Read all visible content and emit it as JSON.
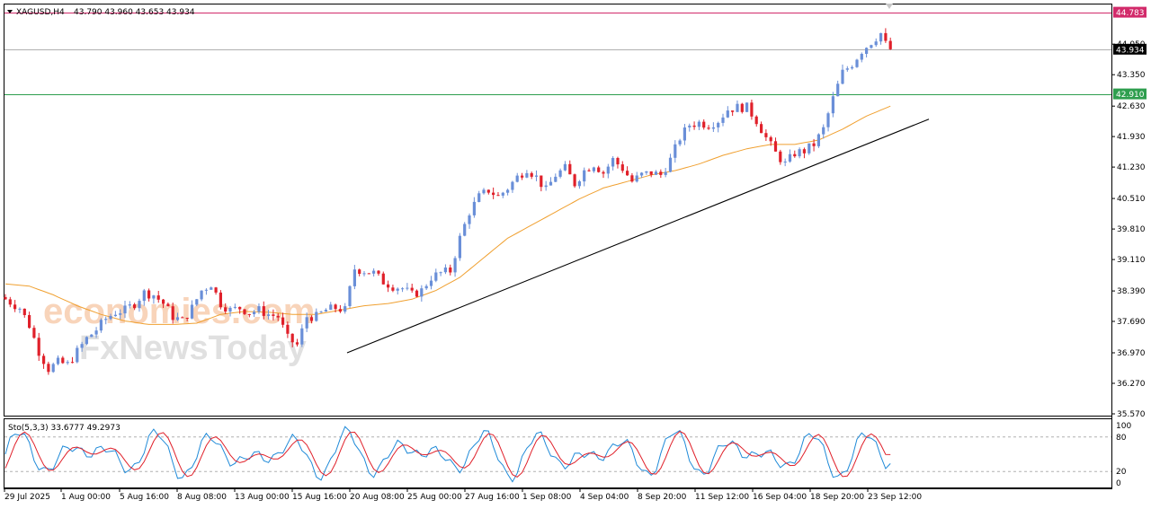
{
  "header": {
    "symbol_timeframe": "XAGUSD,H4",
    "ohlc": "43.790 43.960 43.653 43.934"
  },
  "watermark": {
    "brand1": "economies.com",
    "brand2": "FxNewsToday",
    "brand1_color": "#f4b183",
    "brand2_color": "#c8c8c8"
  },
  "colors": {
    "bull": "#6a8fd8",
    "bear": "#e0202a",
    "ma": "#f0a030",
    "trendline": "#000000",
    "level_red": "#d22a6a",
    "level_green": "#2e9e4e",
    "stoch_main": "#1f8ad8",
    "stoch_signal": "#e0202a"
  },
  "price_labels": {
    "high_level": "44.783",
    "current": "43.934",
    "support_level": "42.910"
  },
  "indicator": {
    "label": "Sto(5,3,3) 33.6777 49.2973",
    "scale_labels": [
      "100",
      "80",
      "20",
      "0"
    ]
  },
  "chart_data": [
    {
      "type": "candlestick",
      "symbol": "XAGUSD",
      "timeframe": "H4",
      "ylim": [
        35.57,
        44.96
      ],
      "y_ticks": [
        "44.050",
        "43.350",
        "42.630",
        "41.930",
        "41.230",
        "40.510",
        "39.810",
        "39.110",
        "38.390",
        "37.690",
        "36.970",
        "36.270",
        "35.570"
      ],
      "x_ticks": [
        "29 Jul 2025",
        "1 Aug 00:00",
        "5 Aug 16:00",
        "8 Aug 08:00",
        "13 Aug 00:00",
        "15 Aug 16:00",
        "20 Aug 08:00",
        "25 Aug 00:00",
        "27 Aug 16:00",
        "1 Sep 08:00",
        "4 Sep 04:00",
        "8 Sep 20:00",
        "11 Sep 12:00",
        "16 Sep 04:00",
        "18 Sep 20:00",
        "23 Sep 12:00"
      ],
      "horizontal_levels": [
        {
          "value": 44.783,
          "color": "#d22a6a"
        },
        {
          "value": 43.934,
          "color": "#b0b0b0"
        },
        {
          "value": 42.91,
          "color": "#2e9e4e"
        }
      ],
      "trendline": {
        "from": 36.97,
        "to": 42.33
      },
      "close_path": [
        [
          0,
          38.2
        ],
        [
          3,
          38.0
        ],
        [
          5,
          37.6
        ],
        [
          7,
          37.0
        ],
        [
          9,
          36.6
        ],
        [
          11,
          36.75
        ],
        [
          13,
          36.7
        ],
        [
          15,
          37.0
        ],
        [
          17,
          37.3
        ],
        [
          19,
          37.5
        ],
        [
          21,
          37.75
        ],
        [
          23,
          37.9
        ],
        [
          25,
          37.95
        ],
        [
          27,
          38.1
        ],
        [
          29,
          38.35
        ],
        [
          31,
          38.3
        ],
        [
          33,
          38.1
        ],
        [
          35,
          37.8
        ],
        [
          37,
          37.7
        ],
        [
          39,
          38.0
        ],
        [
          41,
          38.4
        ],
        [
          43,
          38.55
        ],
        [
          45,
          38.1
        ],
        [
          47,
          37.95
        ],
        [
          49,
          38.0
        ],
        [
          51,
          37.9
        ],
        [
          53,
          37.95
        ],
        [
          55,
          37.85
        ],
        [
          57,
          37.8
        ],
        [
          59,
          37.3
        ],
        [
          61,
          37.15
        ],
        [
          63,
          37.8
        ],
        [
          65,
          37.8
        ],
        [
          67,
          37.95
        ],
        [
          69,
          38.0
        ],
        [
          71,
          37.95
        ],
        [
          73,
          38.9
        ],
        [
          75,
          38.85
        ],
        [
          77,
          38.8
        ],
        [
          79,
          38.6
        ],
        [
          81,
          38.5
        ],
        [
          83,
          38.45
        ],
        [
          85,
          38.3
        ],
        [
          87,
          38.4
        ],
        [
          89,
          38.7
        ],
        [
          91,
          38.8
        ],
        [
          93,
          38.85
        ],
        [
          95,
          39.6
        ],
        [
          97,
          40.2
        ],
        [
          99,
          40.55
        ],
        [
          101,
          40.7
        ],
        [
          103,
          40.55
        ],
        [
          105,
          40.75
        ],
        [
          107,
          41.0
        ],
        [
          109,
          41.2
        ],
        [
          111,
          41.0
        ],
        [
          113,
          40.7
        ],
        [
          115,
          41.05
        ],
        [
          117,
          41.2
        ],
        [
          119,
          40.85
        ],
        [
          121,
          41.15
        ],
        [
          123,
          41.3
        ],
        [
          125,
          41.1
        ],
        [
          127,
          41.4
        ],
        [
          129,
          41.2
        ],
        [
          131,
          40.9
        ],
        [
          133,
          41.05
        ],
        [
          135,
          41.1
        ],
        [
          137,
          41.05
        ],
        [
          139,
          41.4
        ],
        [
          141,
          41.9
        ],
        [
          143,
          42.2
        ],
        [
          145,
          42.25
        ],
        [
          147,
          42.2
        ],
        [
          149,
          42.3
        ],
        [
          151,
          42.55
        ],
        [
          153,
          42.6
        ],
        [
          155,
          42.6
        ],
        [
          157,
          42.3
        ],
        [
          159,
          41.9
        ],
        [
          161,
          41.55
        ],
        [
          163,
          41.3
        ],
        [
          165,
          41.55
        ],
        [
          167,
          41.6
        ],
        [
          169,
          41.75
        ],
        [
          171,
          42.1
        ],
        [
          173,
          42.8
        ],
        [
          175,
          43.4
        ],
        [
          177,
          43.6
        ],
        [
          179,
          43.9
        ],
        [
          181,
          44.1
        ],
        [
          183,
          44.3
        ],
        [
          184,
          44.05
        ],
        [
          185,
          43.934
        ]
      ],
      "moving_average_path": [
        [
          0,
          38.55
        ],
        [
          5,
          38.5
        ],
        [
          10,
          38.3
        ],
        [
          15,
          38.05
        ],
        [
          20,
          37.85
        ],
        [
          25,
          37.7
        ],
        [
          30,
          37.62
        ],
        [
          35,
          37.62
        ],
        [
          40,
          37.65
        ],
        [
          45,
          37.85
        ],
        [
          50,
          37.92
        ],
        [
          55,
          37.9
        ],
        [
          60,
          37.85
        ],
        [
          65,
          37.85
        ],
        [
          70,
          37.95
        ],
        [
          75,
          38.05
        ],
        [
          80,
          38.1
        ],
        [
          85,
          38.2
        ],
        [
          90,
          38.4
        ],
        [
          95,
          38.7
        ],
        [
          100,
          39.15
        ],
        [
          105,
          39.6
        ],
        [
          110,
          39.9
        ],
        [
          115,
          40.2
        ],
        [
          120,
          40.5
        ],
        [
          125,
          40.75
        ],
        [
          130,
          40.9
        ],
        [
          135,
          41.05
        ],
        [
          140,
          41.15
        ],
        [
          145,
          41.3
        ],
        [
          150,
          41.5
        ],
        [
          155,
          41.65
        ],
        [
          160,
          41.75
        ],
        [
          165,
          41.75
        ],
        [
          170,
          41.85
        ],
        [
          175,
          42.1
        ],
        [
          180,
          42.4
        ],
        [
          185,
          42.63
        ]
      ],
      "watermark_note": "",
      "title": ""
    },
    {
      "type": "line",
      "name": "Stochastic",
      "ylim": [
        0,
        100
      ],
      "levels": [
        80,
        20
      ],
      "series": [
        {
          "name": "main",
          "last": 33.6777
        },
        {
          "name": "signal",
          "last": 49.2973
        }
      ]
    }
  ]
}
